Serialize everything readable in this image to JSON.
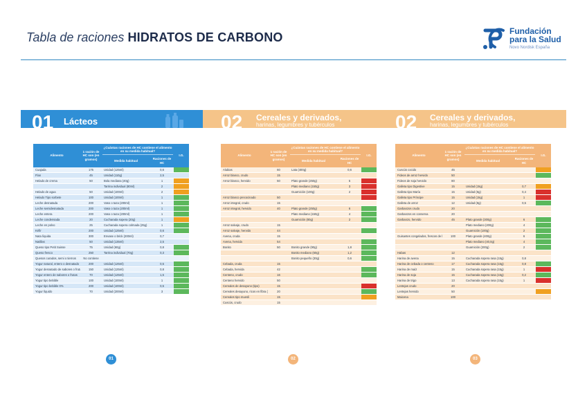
{
  "header": {
    "title_italic": "Tabla de raciones",
    "title_bold": "HIDRATOS DE CARBONO"
  },
  "logo": {
    "name_line1": "Fundación",
    "name_line2": "para la Salud",
    "subtitle": "Novo Nordisk España"
  },
  "colors": {
    "lacteos_band": "#2f8fd6",
    "cereales_band": "#f5c489",
    "ig_low": "#5cb85c",
    "ig_medium": "#f0a020",
    "ig_high": "#d9302c"
  },
  "sections": [
    {
      "number": "01",
      "title": "Lácteos",
      "subtitle": ""
    },
    {
      "number": "02",
      "title": "Cereales y derivados,",
      "subtitle": "harinas, legumbres y tubérculos"
    },
    {
      "number": "02",
      "title": "Cereales y derivados,",
      "subtitle": "harinas, legumbres y tubérculos"
    }
  ],
  "table_headers": {
    "food": "Alimento",
    "ration": "1 ración de HC son (en gramos)",
    "question": "¿Cuántas raciones de HC contiene el alimento en su medida habitual?",
    "measure": "Medida habitual",
    "rations": "Raciones de HC",
    "ig": "I.G."
  },
  "table1": [
    {
      "food": "Cuajada",
      "ration": "175",
      "measure": "Unidad (125ml)",
      "rations": "0,6",
      "ig": "low"
    },
    {
      "food": "Flan",
      "ration": "45",
      "measure": "Unidad (110g)",
      "rations": "2,5",
      "ig": "none"
    },
    {
      "food": "Helado de crema",
      "ration": "50",
      "measure": "Bola mediana (40g)",
      "rations": "1",
      "ig": "med"
    },
    {
      "food": "",
      "ration": "",
      "measure": "Tarrina individual (80ml)",
      "rations": "2",
      "ig": "med"
    },
    {
      "food": "Helado de agua",
      "ration": "50",
      "measure": "Unidad (100ml)",
      "rations": "2",
      "ig": "med"
    },
    {
      "food": "Helado Tipo sorbete",
      "ration": "100",
      "measure": "Unidad (100ml)",
      "rations": "1",
      "ig": "low"
    },
    {
      "food": "Leche desnatada",
      "ration": "200",
      "measure": "Vaso o taza (200ml)",
      "rations": "1",
      "ig": "low"
    },
    {
      "food": "Leche semidesnatada",
      "ration": "200",
      "measure": "Vaso o taza (200ml)",
      "rations": "1",
      "ig": "low"
    },
    {
      "food": "Leche entera",
      "ration": "200",
      "measure": "Vaso o taza (200ml)",
      "rations": "1",
      "ig": "low"
    },
    {
      "food": "Leche condensada",
      "ration": "20",
      "measure": "Cucharada sopera (20g)",
      "rations": "1",
      "ig": "med"
    },
    {
      "food": "Leche en polvo",
      "ration": "25",
      "measure": "Cucharada sopera colmada (25g)",
      "rations": "1",
      "ig": "low"
    },
    {
      "food": "Kéfir",
      "ration": "200",
      "measure": "Unidad (125ml)",
      "rations": "0,6",
      "ig": "low"
    },
    {
      "food": "Nata líquida",
      "ration": "300",
      "measure": "Envase o brick (200ml)",
      "rations": "0,7",
      "ig": "none"
    },
    {
      "food": "Natillas",
      "ration": "50",
      "measure": "Unidad (135ml)",
      "rations": "2,5",
      "ig": "none"
    },
    {
      "food": "Queso tipo Petit Suisse",
      "ration": "75",
      "measure": "Unidad (60g)",
      "rations": "0,8",
      "ig": "low"
    },
    {
      "food": "Queso fresco",
      "ration": "250",
      "measure": "Tarrina individual (70g)",
      "rations": "0,3",
      "ig": "low"
    },
    {
      "food": "Quesos curados, semi o tiernos",
      "ration": "No contiene",
      "measure": "",
      "rations": "",
      "ig": "none"
    },
    {
      "food": "Yogur natural, entero o desnatado",
      "ration": "200",
      "measure": "Unidad (125ml)",
      "rations": "0,5",
      "ig": "low"
    },
    {
      "food": "Yogur desnatado de sabores o frutas",
      "ration": "150",
      "measure": "Unidad (125ml)",
      "rations": "0,8",
      "ig": "low"
    },
    {
      "food": "Yogur entero de sabores o frutas",
      "ration": "70",
      "measure": "Unidad (125ml)",
      "rations": "1,5",
      "ig": "low"
    },
    {
      "food": "Yogur tipo bebible",
      "ration": "100",
      "measure": "Unidad (100ml)",
      "rations": "1",
      "ig": "low"
    },
    {
      "food": "Yogur tipo bebible 0%",
      "ration": "200",
      "measure": "Unidad (100ml)",
      "rations": "0,5",
      "ig": "low"
    },
    {
      "food": "Yogur líquido",
      "ration": "70",
      "measure": "Unidad (200ml)",
      "rations": "3",
      "ig": "low"
    }
  ],
  "table2": [
    {
      "food": "Alubias",
      "ration": "60",
      "measure": "Lata (400g)",
      "rations": "0,6",
      "ig": "low"
    },
    {
      "food": "Arroz blanco, crudo",
      "ration": "15",
      "measure": "",
      "rations": "",
      "ig": "none"
    },
    {
      "food": "Arroz blanco, hervido",
      "ration": "50",
      "measure": "Plato grande (250g)",
      "rations": "5",
      "ig": "high"
    },
    {
      "food": "",
      "ration": "",
      "measure": "Plato mediano (150g)",
      "rations": "3",
      "ig": "high"
    },
    {
      "food": "",
      "ration": "",
      "measure": "Guarnición (100g)",
      "rations": "2",
      "ig": "high"
    },
    {
      "food": "Arroz blanco precocinado",
      "ration": "50",
      "measure": "",
      "rations": "",
      "ig": "high"
    },
    {
      "food": "Arroz integral, crudo",
      "ration": "15",
      "measure": "",
      "rations": "",
      "ig": "none"
    },
    {
      "food": "Arroz integral, hervido",
      "ration": "40",
      "measure": "Plato grande (250g)",
      "rations": "6",
      "ig": "low"
    },
    {
      "food": "",
      "ration": "",
      "measure": "Plato mediano (150g)",
      "rations": "4",
      "ig": "low"
    },
    {
      "food": "",
      "ration": "",
      "measure": "Guarnición (80g)",
      "rations": "2",
      "ig": "low"
    },
    {
      "food": "Arroz salvaje, crudo",
      "ration": "15",
      "measure": "",
      "rations": "",
      "ig": "none"
    },
    {
      "food": "Arroz salvaje, hervido",
      "ration": "44",
      "measure": "",
      "rations": "",
      "ig": "low"
    },
    {
      "food": "Avena, cruda",
      "ration": "15",
      "measure": "",
      "rations": "",
      "ig": "none"
    },
    {
      "food": "Avena, hervida",
      "ration": "54",
      "measure": "",
      "rations": "",
      "ig": "low"
    },
    {
      "food": "Bonito",
      "ration": "50",
      "measure": "Bonito grande (90g)",
      "rations": "1,8",
      "ig": "low"
    },
    {
      "food": "",
      "ration": "",
      "measure": "Bonito mediano (60g)",
      "rations": "1,2",
      "ig": "low"
    },
    {
      "food": "",
      "ration": "",
      "measure": "Bonito pequeño (30g)",
      "rations": "0,6",
      "ig": "low"
    },
    {
      "food": "Cebada, cruda",
      "ration": "15",
      "measure": "",
      "rations": "",
      "ig": "none"
    },
    {
      "food": "Cebada, hervida",
      "ration": "42",
      "measure": "",
      "rations": "",
      "ig": "low"
    },
    {
      "food": "Centeno, crudo",
      "ration": "16",
      "measure": "",
      "rations": "",
      "ig": "low"
    },
    {
      "food": "Centeno hervido",
      "ration": "50",
      "measure": "",
      "rations": "",
      "ig": "none"
    },
    {
      "food": "Cereales de desayuno (tipo)",
      "ration": "15",
      "measure": "",
      "rations": "",
      "ig": "high"
    },
    {
      "food": "Cereales desayuno, ricos en fibra (All Bran)",
      "ration": "20",
      "measure": "",
      "rations": "",
      "ig": "low"
    },
    {
      "food": "Cereales tipo muesli",
      "ration": "15",
      "measure": "",
      "rations": "",
      "ig": "med"
    },
    {
      "food": "Cuscús, crudo",
      "ration": "15",
      "measure": "",
      "rations": "",
      "ig": "none"
    }
  ],
  "table3": [
    {
      "food": "Cuscús cocido",
      "ration": "45",
      "measure": "",
      "rations": "",
      "ig": "med"
    },
    {
      "food": "Fideos de arroz hervido",
      "ration": "50",
      "measure": "",
      "rations": "",
      "ig": "low"
    },
    {
      "food": "Fideos de soja hervido",
      "ration": "80",
      "measure": "",
      "rations": "",
      "ig": "none"
    },
    {
      "food": "Galleta tipo Digestive",
      "ration": "15",
      "measure": "Unidad (15g)",
      "rations": "0,7",
      "ig": "med"
    },
    {
      "food": "Galleta tipo María",
      "ration": "15",
      "measure": "Unidad (6g)",
      "rations": "0,4",
      "ig": "high"
    },
    {
      "food": "Galleta tipo Príncipe",
      "ration": "15",
      "measure": "Unidad (15g)",
      "rations": "1",
      "ig": "high"
    },
    {
      "food": "Galleta de arroz",
      "ration": "12",
      "measure": "Unidad (8g)",
      "rations": "0,5",
      "ig": "low"
    },
    {
      "food": "Garbanzos crudo",
      "ration": "20",
      "measure": "",
      "rations": "",
      "ig": "none"
    },
    {
      "food": "Garbanzos en conserva",
      "ration": "20",
      "measure": "",
      "rations": "",
      "ig": "none"
    },
    {
      "food": "Garbanzo, hervido",
      "ration": "45",
      "measure": "Plato grande (300g)",
      "rations": "6",
      "ig": "low"
    },
    {
      "food": "",
      "ration": "",
      "measure": "Plato mediano (200g)",
      "rations": "4",
      "ig": "low"
    },
    {
      "food": "",
      "ration": "",
      "measure": "Guarnición (100g)",
      "rations": "2",
      "ig": "low"
    },
    {
      "food": "Guisantes congelados, frescos de lata",
      "ration": "100",
      "measure": "Plato grande (400g)",
      "rations": "6",
      "ig": "low"
    },
    {
      "food": "",
      "ration": "",
      "measure": "Plato mediano (40,0g)",
      "rations": "4",
      "ig": "low"
    },
    {
      "food": "",
      "ration": "",
      "measure": "Guarnición (200g)",
      "rations": "2",
      "ig": "low"
    },
    {
      "food": "Habas",
      "ration": "12",
      "measure": "",
      "rations": "",
      "ig": "none"
    },
    {
      "food": "Harina de avena",
      "ration": "15",
      "measure": "Cucharada sopera rasa (15g)",
      "rations": "0,8",
      "ig": "none"
    },
    {
      "food": "Harina de cebada o centeno",
      "ration": "17",
      "measure": "Cucharada sopera rasa (15g)",
      "rations": "0,8",
      "ig": "low"
    },
    {
      "food": "Harina de maíz",
      "ration": "15",
      "measure": "Cucharada sopera rasa (15g)",
      "rations": "1",
      "ig": "high"
    },
    {
      "food": "Harina de soja",
      "ration": "15",
      "measure": "Cucharada sopera rasa (15g)",
      "rations": "0,2",
      "ig": "low"
    },
    {
      "food": "Harina de trigo",
      "ration": "13",
      "measure": "Cucharada sopera rasa (15g)",
      "rations": "1",
      "ig": "high"
    },
    {
      "food": "Lentejas crudo",
      "ration": "20",
      "measure": "",
      "rations": "",
      "ig": "none"
    },
    {
      "food": "Lentejas hervido",
      "ration": "50",
      "measure": "",
      "rations": "",
      "ig": "med"
    },
    {
      "food": "Maicena",
      "ration": "100",
      "measure": "",
      "rations": "",
      "ig": "none"
    }
  ],
  "pages": [
    "01",
    "02",
    "03"
  ]
}
